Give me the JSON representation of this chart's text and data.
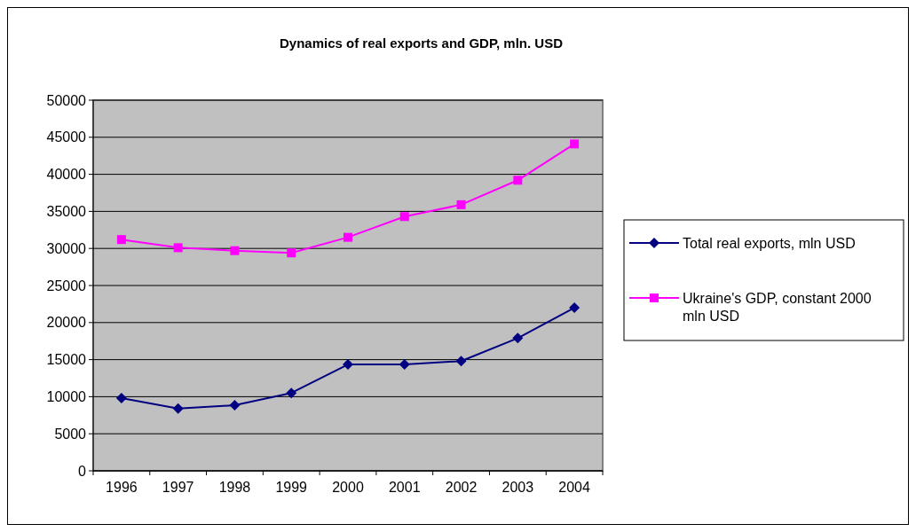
{
  "chart_data": {
    "type": "line",
    "title": "Dynamics of real exports and GDP, mln. USD",
    "categories": [
      "1996",
      "1997",
      "1998",
      "1999",
      "2000",
      "2001",
      "2002",
      "2003",
      "2004"
    ],
    "series": [
      {
        "name": "Total real exports, mln USD",
        "color": "#000080",
        "marker": "diamond",
        "values": [
          9800,
          8400,
          8850,
          10500,
          14350,
          14350,
          14800,
          17900,
          22000
        ]
      },
      {
        "name": "Ukraine's GDP, constant 2000 mln USD",
        "color": "#ff00ff",
        "marker": "square",
        "values": [
          31200,
          30100,
          29700,
          29400,
          31500,
          34300,
          35900,
          39200,
          44100
        ]
      }
    ],
    "ylim": [
      0,
      50000
    ],
    "yticks": [
      0,
      5000,
      10000,
      15000,
      20000,
      25000,
      30000,
      35000,
      40000,
      45000,
      50000
    ],
    "grid": "y",
    "legend": "right"
  }
}
